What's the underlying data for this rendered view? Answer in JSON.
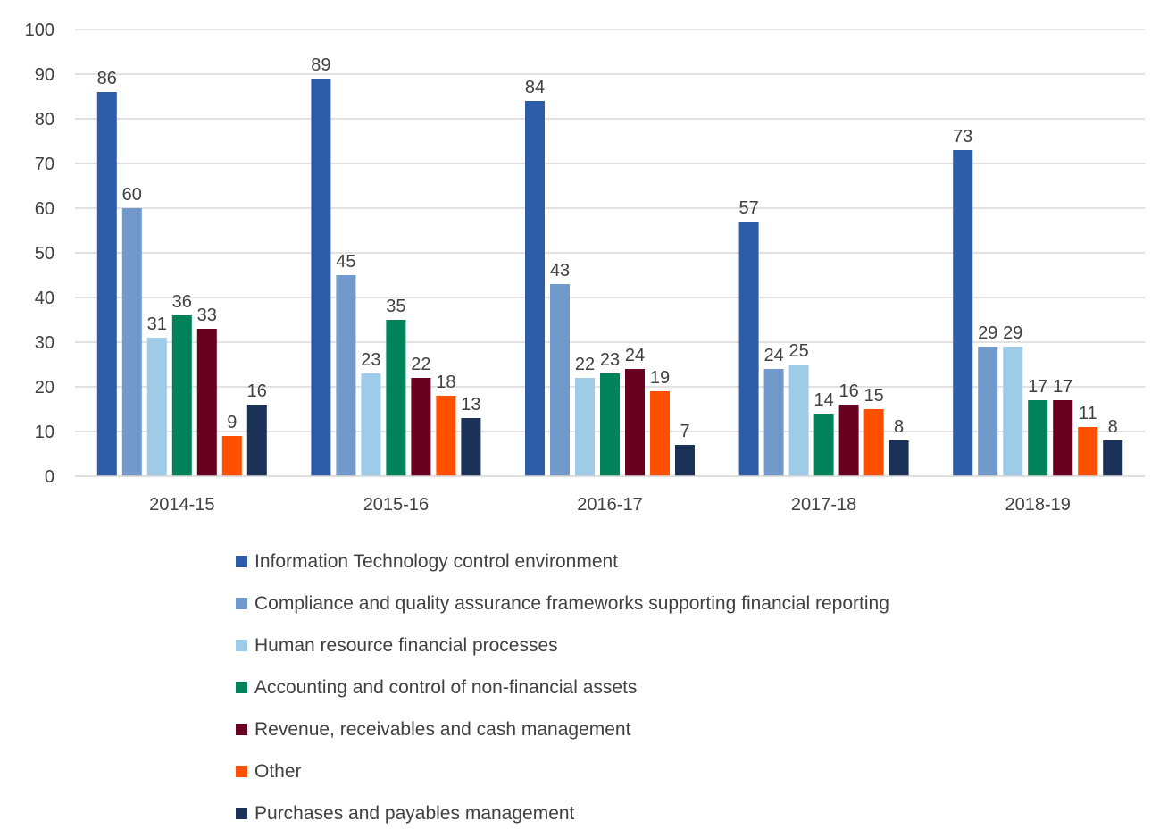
{
  "chart_data": {
    "type": "bar",
    "title": "",
    "xlabel": "",
    "ylabel": "",
    "ylim": [
      0,
      100
    ],
    "yticks": [
      "0",
      "10",
      "20",
      "30",
      "40",
      "50",
      "60",
      "70",
      "80",
      "90",
      "100"
    ],
    "grid": true,
    "legend_position": "bottom",
    "categories": [
      "2014-15",
      "2015-16",
      "2016-17",
      "2017-18",
      "2018-19"
    ],
    "series": [
      {
        "name": "Information Technology control environment",
        "color": "#2E5CA8",
        "values": [
          86,
          89,
          84,
          57,
          73
        ]
      },
      {
        "name": "Compliance and quality assurance frameworks supporting financial reporting",
        "color": "#7199CC",
        "values": [
          60,
          45,
          43,
          24,
          29
        ]
      },
      {
        "name": "Human resource financial processes",
        "color": "#9DCBE8",
        "values": [
          31,
          23,
          22,
          25,
          29
        ]
      },
      {
        "name": "Accounting and control of non-financial assets",
        "color": "#00825A",
        "values": [
          36,
          35,
          23,
          14,
          17
        ]
      },
      {
        "name": "Revenue, receivables and cash management",
        "color": "#6A0021",
        "values": [
          33,
          22,
          24,
          16,
          17
        ]
      },
      {
        "name": "Other",
        "color": "#FF5000",
        "values": [
          9,
          18,
          19,
          15,
          11
        ]
      },
      {
        "name": "Purchases and payables management",
        "color": "#1C3158",
        "values": [
          16,
          13,
          7,
          8,
          8
        ]
      }
    ]
  }
}
